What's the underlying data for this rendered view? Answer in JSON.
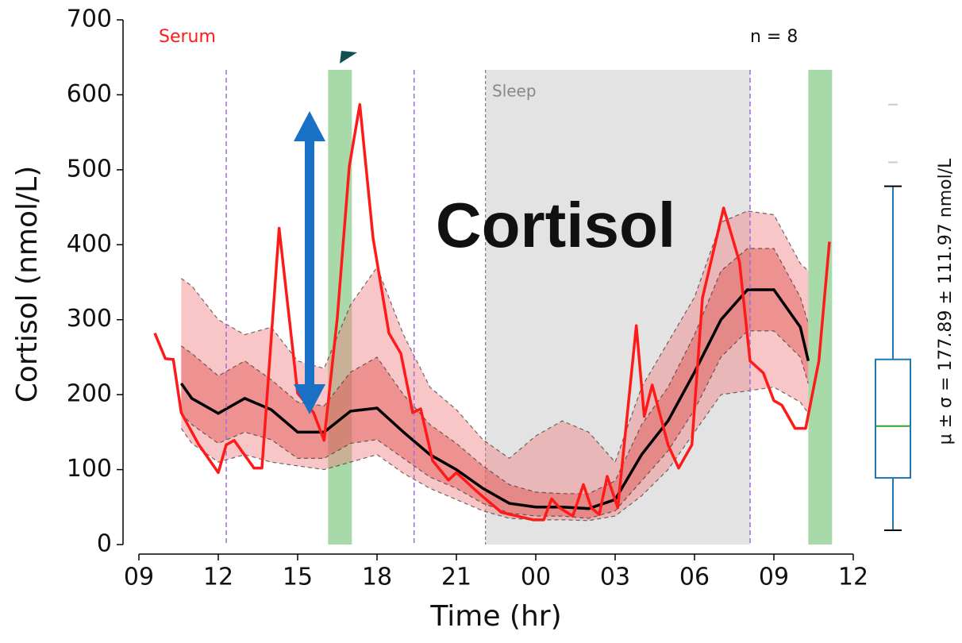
{
  "chart_data": {
    "type": "line",
    "xlabel": "Time (hr)",
    "ylabel": "Cortisol (nmol/L)",
    "overlay_title": "Cortisol",
    "n_label": "n = 8",
    "sleep_label": "Sleep",
    "stats_label": "μ ± σ = 177.89 ± 111.97 nmol/L",
    "xlim": [
      9,
      36
    ],
    "ylim": [
      0,
      700
    ],
    "xticks": [
      {
        "value": 9,
        "label": "09"
      },
      12,
      15,
      18,
      21,
      {
        "value": 24,
        "label": "00"
      },
      {
        "value": 27,
        "label": "03"
      },
      {
        "value": 30,
        "label": "06"
      },
      {
        "value": 33,
        "label": "09"
      },
      {
        "value": 36,
        "label": "12"
      }
    ],
    "yticks": [
      0,
      100,
      200,
      300,
      400,
      500,
      600,
      700
    ],
    "sleep": [
      22.1,
      32.1
    ],
    "sleep_color": "#e3e3e3",
    "vlines": [
      12.3,
      19.4,
      32.1
    ],
    "vline_color": "#9b6fd6",
    "green_bands": [
      [
        16.15,
        17.05
      ],
      [
        34.3,
        35.2
      ]
    ],
    "green_color": "#92cf92",
    "profile": {
      "x": [
        10.6,
        11,
        12,
        13,
        14,
        15,
        16,
        17,
        18,
        19,
        20,
        21,
        22,
        23,
        24,
        25,
        26,
        27,
        28,
        29,
        30,
        31,
        32,
        33,
        34,
        34.3
      ],
      "mean": [
        215,
        195,
        175,
        195,
        180,
        150,
        150,
        178,
        182,
        150,
        120,
        100,
        75,
        55,
        50,
        50,
        48,
        60,
        120,
        165,
        230,
        300,
        340,
        340,
        290,
        245
      ],
      "upper1": [
        265,
        255,
        225,
        245,
        220,
        190,
        185,
        230,
        250,
        200,
        160,
        135,
        105,
        80,
        70,
        68,
        68,
        85,
        160,
        210,
        280,
        365,
        395,
        395,
        330,
        295
      ],
      "lower1": [
        175,
        160,
        135,
        150,
        140,
        115,
        115,
        135,
        140,
        115,
        90,
        75,
        55,
        42,
        38,
        38,
        35,
        45,
        85,
        125,
        180,
        250,
        285,
        285,
        250,
        215
      ],
      "upper2": [
        355,
        345,
        300,
        280,
        290,
        245,
        235,
        320,
        370,
        280,
        210,
        180,
        140,
        115,
        145,
        165,
        150,
        110,
        210,
        270,
        330,
        430,
        445,
        440,
        375,
        365
      ],
      "lower2": [
        155,
        135,
        110,
        120,
        110,
        105,
        100,
        110,
        120,
        95,
        75,
        60,
        45,
        35,
        33,
        33,
        32,
        38,
        65,
        100,
        150,
        200,
        205,
        210,
        190,
        175
      ],
      "mean_color": "#000000",
      "inner_color": "#e05050",
      "outer_color": "#f08080"
    },
    "series": [
      {
        "name": "Serum",
        "color": "#ff1a1a",
        "x": [
          9.6,
          10.0,
          10.3,
          10.6,
          11.25,
          12.0,
          12.3,
          12.6,
          13.35,
          13.65,
          14.3,
          15.0,
          15.6,
          16.0,
          16.5,
          16.95,
          17.35,
          17.85,
          18.45,
          18.9,
          19.35,
          19.65,
          20.1,
          20.7,
          21.0,
          21.8,
          22.7,
          23.9,
          24.3,
          24.6,
          24.9,
          25.4,
          25.8,
          26.1,
          26.4,
          26.7,
          27.1,
          27.8,
          28.1,
          28.4,
          29.0,
          29.4,
          29.9,
          30.3,
          31.1,
          31.7,
          32.1,
          32.6,
          33.0,
          33.3,
          33.8,
          34.2,
          34.7,
          35.1
        ],
        "values": [
          282,
          248,
          247,
          176,
          134,
          96,
          133,
          139,
          102,
          102,
          422,
          202,
          176,
          139,
          303,
          504,
          587,
          409,
          282,
          255,
          176,
          181,
          112,
          86,
          96,
          70,
          43,
          33,
          33,
          61,
          49,
          38,
          80,
          49,
          40,
          91,
          49,
          292,
          171,
          213,
          133,
          102,
          133,
          329,
          449,
          377,
          245,
          229,
          192,
          186,
          155,
          155,
          245,
          404
        ]
      }
    ],
    "box": {
      "whislo": 19,
      "q1": 89,
      "med": 158,
      "q3": 247,
      "whishi": 478,
      "fliers": [
        510,
        587
      ],
      "color": "#1f77b4",
      "median_color": "#2ca02c"
    }
  }
}
